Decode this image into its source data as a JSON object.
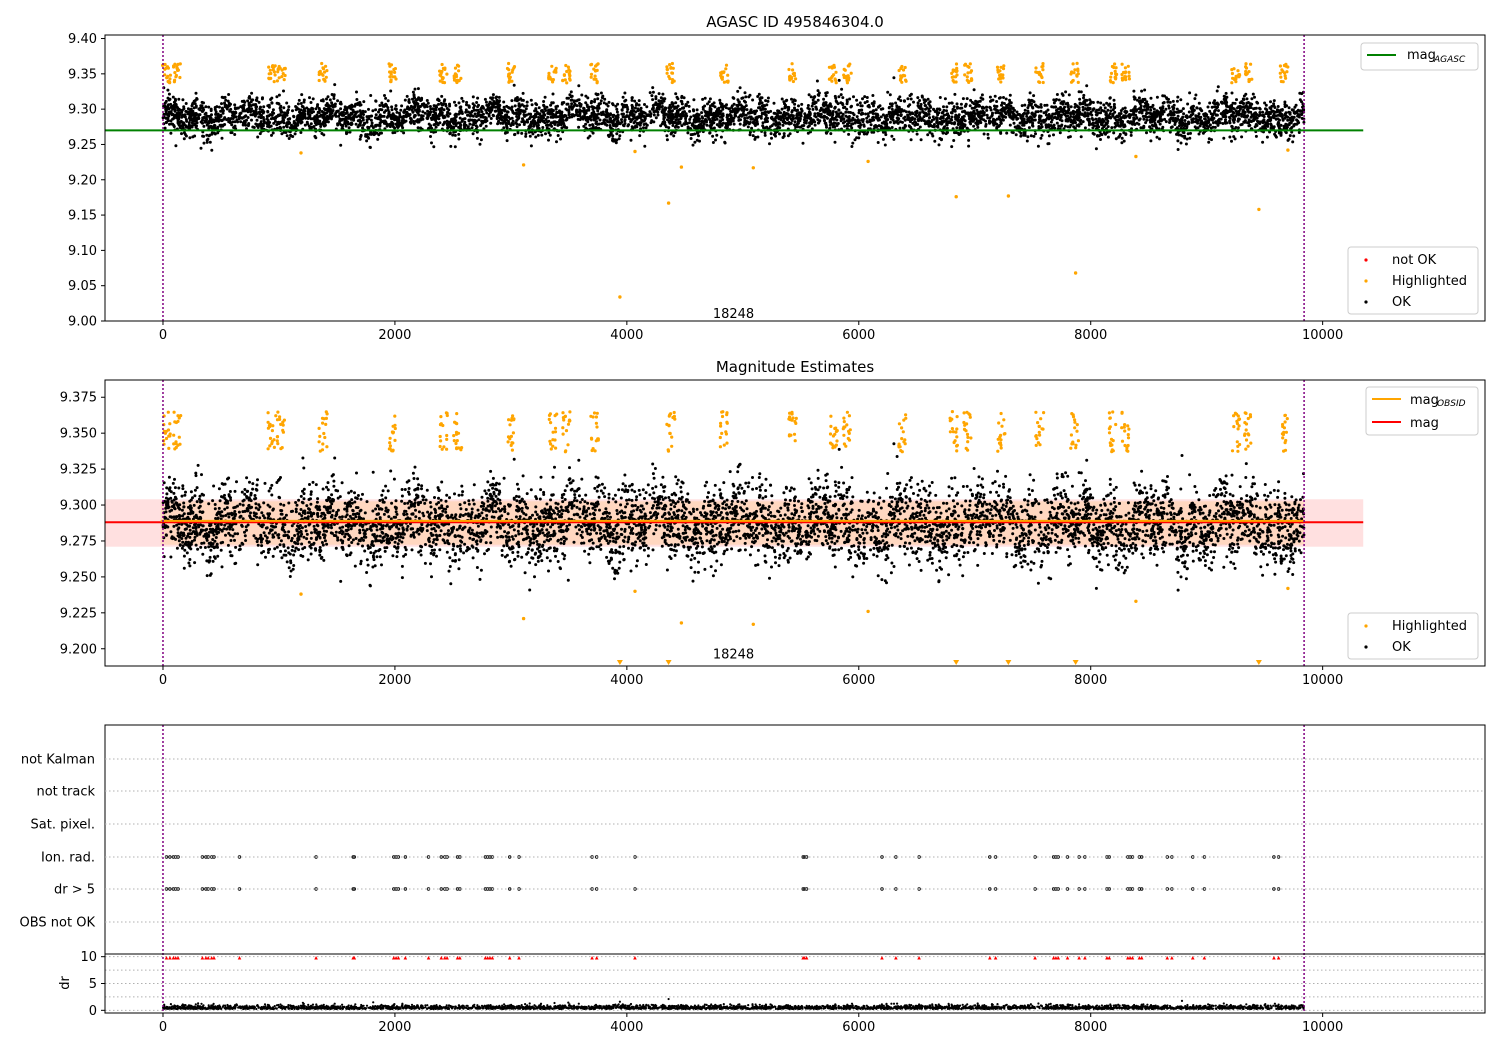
{
  "chart_data": [
    {
      "type": "scatter",
      "title": "AGASC ID 495846304.0",
      "xlim": [
        -500,
        11400
      ],
      "ylim": [
        9.0,
        9.405
      ],
      "xticks": [
        0,
        2000,
        4000,
        6000,
        8000,
        10000
      ],
      "yticks": [
        9.0,
        9.05,
        9.1,
        9.15,
        9.2,
        9.25,
        9.3,
        9.35,
        9.4
      ],
      "ytick_labels": [
        "9.00",
        "9.05",
        "9.10",
        "9.15",
        "9.20",
        "9.25",
        "9.30",
        "9.35",
        "9.40"
      ],
      "obs_boundaries": [
        0,
        9840
      ],
      "obs_label": {
        "text": "18248",
        "x": 4920,
        "y": 9.01
      },
      "ref_line": {
        "name": "mag",
        "subscript": "AGASC",
        "value": 9.27,
        "x": [
          -500,
          10350
        ],
        "color": "#008000"
      },
      "series": [
        {
          "name": "not OK",
          "color": "#ff0000",
          "count": 0
        },
        {
          "name": "Highlighted",
          "color": "#ffa500",
          "count": 420
        },
        {
          "name": "OK",
          "color": "#000000",
          "count": 5600
        }
      ],
      "outliers": [
        [
          1190,
          9.238
        ],
        [
          3110,
          9.221
        ],
        [
          4070,
          9.24
        ],
        [
          4360,
          9.167
        ],
        [
          4470,
          9.218
        ],
        [
          5090,
          9.217
        ],
        [
          6080,
          9.226
        ],
        [
          6840,
          9.176
        ],
        [
          7290,
          9.177
        ],
        [
          7870,
          9.068
        ],
        [
          8390,
          9.233
        ],
        [
          9450,
          9.158
        ],
        [
          9700,
          9.242
        ],
        [
          3940,
          9.034
        ]
      ],
      "bursts": [
        30,
        120,
        940,
        1020,
        1380,
        1980,
        2420,
        2540,
        3000,
        3360,
        3480,
        3720,
        4380,
        4840,
        5430,
        5780,
        5900,
        6380,
        6820,
        6940,
        7230,
        7560,
        7860,
        8190,
        8300,
        9250,
        9360,
        9670
      ],
      "legend_top": {
        "position": "upper right"
      },
      "legend_bottom": {
        "position": "lower right"
      }
    },
    {
      "type": "scatter",
      "title": "Magnitude Estimates",
      "xlim": [
        -500,
        11400
      ],
      "ylim": [
        9.188,
        9.387
      ],
      "xticks": [
        0,
        2000,
        4000,
        6000,
        8000,
        10000
      ],
      "yticks": [
        9.2,
        9.225,
        9.25,
        9.275,
        9.3,
        9.325,
        9.35,
        9.375
      ],
      "ytick_labels": [
        "9.200",
        "9.225",
        "9.250",
        "9.275",
        "9.300",
        "9.325",
        "9.350",
        "9.375"
      ],
      "obs_boundaries": [
        0,
        9840
      ],
      "obs_label": {
        "text": "18248",
        "x": 4920,
        "y": 9.196
      },
      "mean_band": {
        "low": 9.271,
        "high": 9.304,
        "mean": 9.288,
        "x": [
          -500,
          10350
        ],
        "color": "#ff0000"
      },
      "obsid_line": {
        "name": "mag",
        "subscript": "OBSID",
        "value": 9.289,
        "x": [
          -20,
          9840
        ],
        "color": "#ffa500"
      },
      "mag_line": {
        "name": "mag",
        "value": 9.288,
        "color": "#ff0000"
      },
      "below_markers": [
        3940,
        4360,
        6840,
        7290,
        7870,
        9450
      ],
      "series": [
        {
          "name": "Highlighted",
          "color": "#ffa500"
        },
        {
          "name": "OK",
          "color": "#000000"
        }
      ],
      "legend_top": {
        "position": "upper right"
      },
      "legend_bottom": {
        "position": "lower right"
      }
    },
    {
      "type": "scatter",
      "title": "",
      "xlim": [
        -500,
        11400
      ],
      "flag_rows": [
        "not Kalman",
        "not track",
        "Sat. pixel.",
        "Ion. rad.",
        "dr > 5",
        "OBS not OK"
      ],
      "flag_x": [
        30,
        60,
        90,
        110,
        130,
        340,
        370,
        390,
        420,
        440,
        660,
        1320,
        1640,
        1650,
        1990,
        2010,
        2030,
        2090,
        2290,
        2400,
        2430,
        2450,
        2540,
        2560,
        2780,
        2800,
        2820,
        2840,
        2990,
        3070,
        3700,
        3740,
        4070,
        5520,
        5530,
        5550,
        6200,
        6320,
        6520,
        7130,
        7180,
        7520,
        7680,
        7700,
        7720,
        7800,
        7900,
        7950,
        8140,
        8160,
        8320,
        8340,
        8360,
        8420,
        8440,
        8660,
        8700,
        8880,
        8980,
        9580,
        9620
      ],
      "dr_axis": {
        "ylabel": "dr",
        "ylim": [
          -0.5,
          10.5
        ],
        "yticks": [
          0,
          5,
          10
        ]
      },
      "dr_flag_value": 9.8,
      "dr_flag_color": "#ff0000",
      "xticks": [
        0,
        2000,
        4000,
        6000,
        8000,
        10000
      ],
      "obs_boundaries": [
        0,
        9840
      ]
    }
  ]
}
